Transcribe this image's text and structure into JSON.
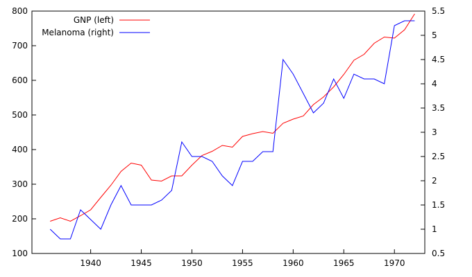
{
  "chart_data": {
    "type": "line",
    "title": "",
    "xlabel": "",
    "ylabel_left": "",
    "ylabel_right": "",
    "x": [
      1936,
      1937,
      1938,
      1939,
      1940,
      1941,
      1942,
      1943,
      1944,
      1945,
      1946,
      1947,
      1948,
      1949,
      1950,
      1951,
      1952,
      1953,
      1954,
      1955,
      1956,
      1957,
      1958,
      1959,
      1960,
      1961,
      1962,
      1963,
      1964,
      1965,
      1966,
      1967,
      1968,
      1969,
      1970,
      1971,
      1972
    ],
    "xlim": [
      1934.2,
      1973.0
    ],
    "ylim_left": [
      100,
      800
    ],
    "ylim_right": [
      0.5,
      5.5
    ],
    "x_ticks": [
      "1940",
      "1945",
      "1950",
      "1955",
      "1960",
      "1965",
      "1970"
    ],
    "y_ticks_left": [
      "100",
      "200",
      "300",
      "400",
      "500",
      "600",
      "700",
      "800"
    ],
    "y_ticks_right": [
      "0.5",
      "1",
      "1.5",
      "2",
      "2.5",
      "3",
      "3.5",
      "4",
      "4.5",
      "5",
      "5.5"
    ],
    "legend_position": "top-left",
    "series": [
      {
        "name": "GNP (left)",
        "axis": "left",
        "color": "#ff0000",
        "values": [
          193,
          203,
          193,
          209,
          226,
          262,
          297,
          337,
          361,
          355,
          312,
          309,
          324,
          324,
          355,
          383,
          395,
          412,
          407,
          438,
          446,
          452,
          447,
          476,
          488,
          497,
          530,
          552,
          581,
          617,
          658,
          675,
          707,
          725,
          722,
          746,
          792
        ]
      },
      {
        "name": "Melanoma (right)",
        "axis": "right",
        "color": "#0000ff",
        "values": [
          1.0,
          0.8,
          0.8,
          1.4,
          1.2,
          1.0,
          1.5,
          1.9,
          1.5,
          1.5,
          1.5,
          1.6,
          1.8,
          2.8,
          2.5,
          2.5,
          2.4,
          2.1,
          1.9,
          2.4,
          2.4,
          2.6,
          2.6,
          4.5,
          4.2,
          3.8,
          3.4,
          3.6,
          4.1,
          3.7,
          4.2,
          4.1,
          4.1,
          4.0,
          5.2,
          5.3,
          5.3
        ]
      }
    ]
  }
}
